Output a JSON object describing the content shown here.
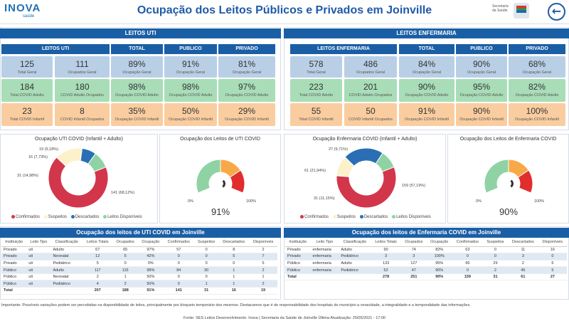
{
  "header": {
    "logo_main": "INOVA",
    "logo_sub": "saúde",
    "title": "Ocupação dos Leitos Públicos e Privados em Joinville",
    "sec_logo": "Secretaria da Saúde",
    "back_icon": "arrow-left-icon"
  },
  "uti": {
    "section_title": "LEITOS UTI",
    "cols": [
      "LEITOS UTI",
      "TOTAL",
      "PUBLICO",
      "PRIVADO"
    ],
    "rows": [
      {
        "a_val": "125",
        "a_lbl": "Total Geral",
        "b_val": "111",
        "b_lbl": "Ocupados Geral",
        "t_val": "89%",
        "t_lbl": "Ocupação Geral",
        "p_val": "91%",
        "p_lbl": "Ocupação Geral",
        "r_val": "81%",
        "r_lbl": "Ocupação Geral"
      },
      {
        "a_val": "184",
        "a_lbl": "Total COVID Adulto",
        "b_val": "180",
        "b_lbl": "COVID Adulto Ocupados",
        "t_val": "98%",
        "t_lbl": "Ocupação COVID Adulto",
        "p_val": "98%",
        "p_lbl": "Ocupação COVID Adulto",
        "r_val": "97%",
        "r_lbl": "Ocupação COVID Adulto"
      },
      {
        "a_val": "23",
        "a_lbl": "Total COVID Infantil",
        "b_val": "8",
        "b_lbl": "COVID Infantil Ocupados",
        "t_val": "35%",
        "t_lbl": "Ocupação COVID Infantil",
        "p_val": "50%",
        "p_lbl": "Ocupação COVID Infantil",
        "r_val": "29%",
        "r_lbl": "Ocupação COVID Infantil"
      }
    ],
    "donut_title": "Ocupação UTI COVID (Infantil + Adulto)",
    "donut_labels": [
      "141 (68,12%)",
      "31 (14,98%)",
      "16 (7,73%)",
      "19 (9,18%)"
    ],
    "gauge_title": "Ocupação dos Leitos de UTI COVID",
    "gauge_value": "91%",
    "gauge_min": "0%",
    "gauge_max": "100%",
    "table_title": "Ocupação dos leitos de UTI COVID em Joinville",
    "table_headers": [
      "Instituição",
      "Leito Tipo",
      "Classificação",
      "Leitos Totais",
      "Ocupados",
      "Ocupação",
      "Confirmados",
      "Suspeitos",
      "Descartados",
      "Disponíveis"
    ],
    "table_rows": [
      [
        "Privado",
        "uti",
        "Adulto",
        "67",
        "65",
        "97%",
        "57",
        "0",
        "8",
        "2"
      ],
      [
        "Privado",
        "uti",
        "Neonatal",
        "12",
        "5",
        "42%",
        "0",
        "0",
        "5",
        "7"
      ],
      [
        "Privado",
        "uti",
        "Pediátrico",
        "5",
        "0",
        "0%",
        "0",
        "0",
        "0",
        "5"
      ],
      [
        "Público",
        "uti",
        "Adulto",
        "117",
        "115",
        "98%",
        "84",
        "30",
        "1",
        "2"
      ],
      [
        "Público",
        "uti",
        "Neonatal",
        "2",
        "1",
        "50%",
        "0",
        "0",
        "1",
        "1"
      ],
      [
        "Público",
        "uti",
        "Pediátrico",
        "4",
        "2",
        "50%",
        "0",
        "1",
        "1",
        "2"
      ]
    ],
    "table_total": [
      "Total",
      "",
      "",
      "207",
      "188",
      "91%",
      "141",
      "31",
      "16",
      "19"
    ]
  },
  "enf": {
    "section_title": "LEITOS ENFERMARIA",
    "cols": [
      "LEITOS ENFERMARIA",
      "TOTAL",
      "PUBLICO",
      "PRIVADO"
    ],
    "rows": [
      {
        "a_val": "578",
        "a_lbl": "Total Geral",
        "b_val": "486",
        "b_lbl": "Ocupados Geral",
        "t_val": "84%",
        "t_lbl": "Ocupação Geral",
        "p_val": "90%",
        "p_lbl": "Ocupação Geral",
        "r_val": "68%",
        "r_lbl": "Ocupação Geral"
      },
      {
        "a_val": "223",
        "a_lbl": "Total COVID Adulto",
        "b_val": "201",
        "b_lbl": "COVID Adulto Ocupados",
        "t_val": "90%",
        "t_lbl": "Ocupação COVID Adulto",
        "p_val": "95%",
        "p_lbl": "Ocupação COVID Adulto",
        "r_val": "82%",
        "r_lbl": "Ocupação COVID Adulto"
      },
      {
        "a_val": "55",
        "a_lbl": "Total COVID Infantil",
        "b_val": "50",
        "b_lbl": "COVID Infantil Ocupados",
        "t_val": "91%",
        "t_lbl": "Ocupação COVID Infantil",
        "p_val": "90%",
        "p_lbl": "Ocupação COVID Infantil",
        "r_val": "100%",
        "r_lbl": "Ocupação COVID Infantil"
      }
    ],
    "donut_title": "Ocupação Enfermaria COVID (Infantil + Adulto)",
    "donut_labels": [
      "159 (57,19%)",
      "31 (11,15%)",
      "61 (21,94%)",
      "27 (9,71%)"
    ],
    "gauge_title": "Ocupação dos Leitos de Enfermaria COVID",
    "gauge_value": "90%",
    "gauge_min": "0%",
    "gauge_max": "100%",
    "table_title": "Ocupação dos leitos de Enfermaria COVID em Joinville",
    "table_headers": [
      "Instituição",
      "Leito Tipo",
      "Classificação",
      "Leitos Totais",
      "Ocupados",
      "Ocupação",
      "Confirmados",
      "Suspeitos",
      "Descartados",
      "Disponíveis"
    ],
    "table_rows": [
      [
        "Privado",
        "enfermaria",
        "Adulto",
        "90",
        "74",
        "82%",
        "63",
        "0",
        "11",
        "16"
      ],
      [
        "Privado",
        "enfermaria",
        "Pediátrico",
        "3",
        "3",
        "100%",
        "0",
        "0",
        "3",
        "0"
      ],
      [
        "Público",
        "enfermaria",
        "Adulto",
        "133",
        "127",
        "95%",
        "96",
        "29",
        "2",
        "6"
      ],
      [
        "Público",
        "enfermaria",
        "Pediátrico",
        "52",
        "47",
        "90%",
        "0",
        "2",
        "45",
        "5"
      ]
    ],
    "table_total": [
      "Total",
      "",
      "",
      "278",
      "251",
      "90%",
      "159",
      "31",
      "61",
      "27"
    ]
  },
  "legend": [
    "Confirmados",
    "Suspeitos",
    "Descartados",
    "Leitos Disponíveis"
  ],
  "legend_colors": [
    "#d2364a",
    "#fdf1cc",
    "#2a6fb5",
    "#8fd3a4"
  ],
  "chart_data": [
    {
      "type": "pie",
      "title": "Ocupação UTI COVID (Infantil + Adulto)",
      "categories": [
        "Confirmados",
        "Suspeitos",
        "Descartados",
        "Leitos Disponíveis"
      ],
      "values": [
        141,
        31,
        16,
        19
      ]
    },
    {
      "type": "pie",
      "title": "Ocupação Enfermaria COVID (Infantil + Adulto)",
      "categories": [
        "Confirmados",
        "Suspeitos",
        "Descartados",
        "Leitos Disponíveis"
      ],
      "values": [
        159,
        31,
        61,
        27
      ]
    },
    {
      "type": "gauge",
      "title": "Ocupação dos Leitos de UTI COVID",
      "value": 91,
      "range": [
        0,
        100
      ]
    },
    {
      "type": "gauge",
      "title": "Ocupação dos Leitos de Enfermaria COVID",
      "value": 90,
      "range": [
        0,
        100
      ]
    }
  ],
  "footer": {
    "note": "Importante: Possíveis variações podem ser percebidas na disponibilidade de leitos, principalmente por bloqueio temporário dos mesmos. Destacamos que é de responsabilidade dos hospitais do município a veracidade, a integralidade e a temporalidade das informações.",
    "source": "Fonte: SES Leitos Desenvolvimento: Inova | Secretaria da Saúde de Joinville Última Atualização: 25/05/2021 - 17:00"
  }
}
